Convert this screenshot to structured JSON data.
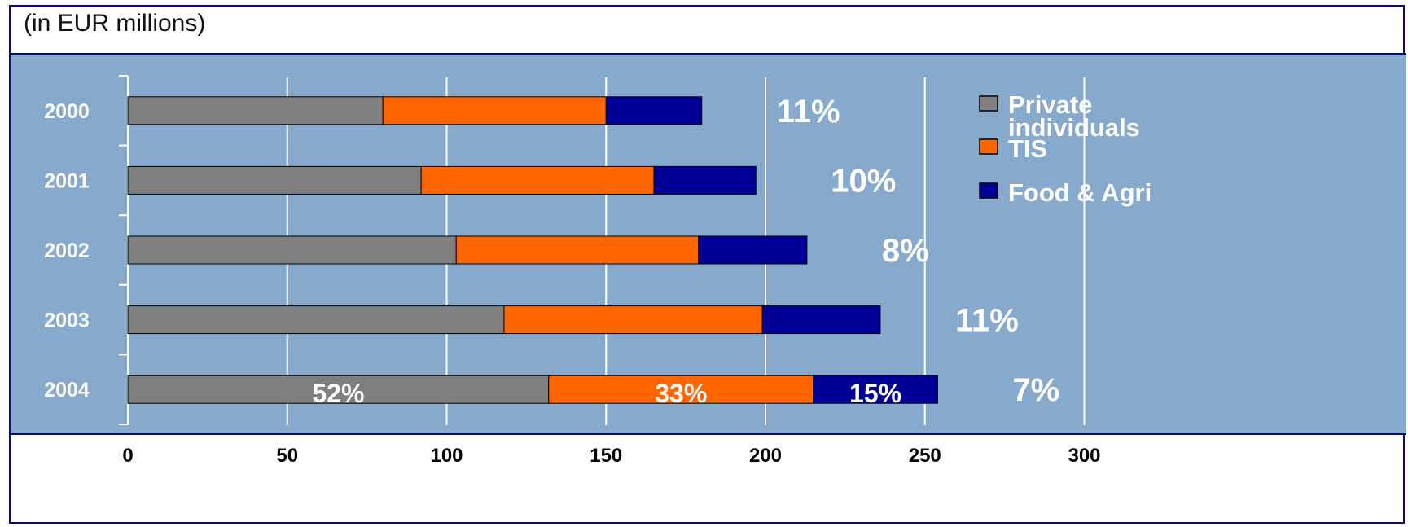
{
  "chart_data": {
    "type": "bar",
    "orientation": "horizontal",
    "stacked": true,
    "title": "",
    "unit_note": "(in EUR millions)",
    "categories": [
      "2000",
      "2001",
      "2002",
      "2003",
      "2004"
    ],
    "series": [
      {
        "name": "Private individuals",
        "color": "#7f7f7f",
        "values": [
          80,
          92,
          103,
          118,
          132
        ]
      },
      {
        "name": "TIS",
        "color": "#ff6600",
        "values": [
          70,
          73,
          76,
          81,
          83
        ]
      },
      {
        "name": "Food & Agri",
        "color": "#000099",
        "values": [
          30,
          32,
          34,
          37,
          39
        ]
      }
    ],
    "row_percent_labels": [
      "11%",
      "10%",
      "8%",
      "11%",
      "7%"
    ],
    "segment_percent_labels": {
      "category": "2004",
      "labels": [
        "52%",
        "33%",
        "15%"
      ]
    },
    "x_ticks": [
      0,
      50,
      100,
      150,
      200,
      250,
      300
    ],
    "xlim": [
      0,
      350
    ],
    "grid": true,
    "legend_position": "right",
    "plot_background": "#87a9cc"
  }
}
